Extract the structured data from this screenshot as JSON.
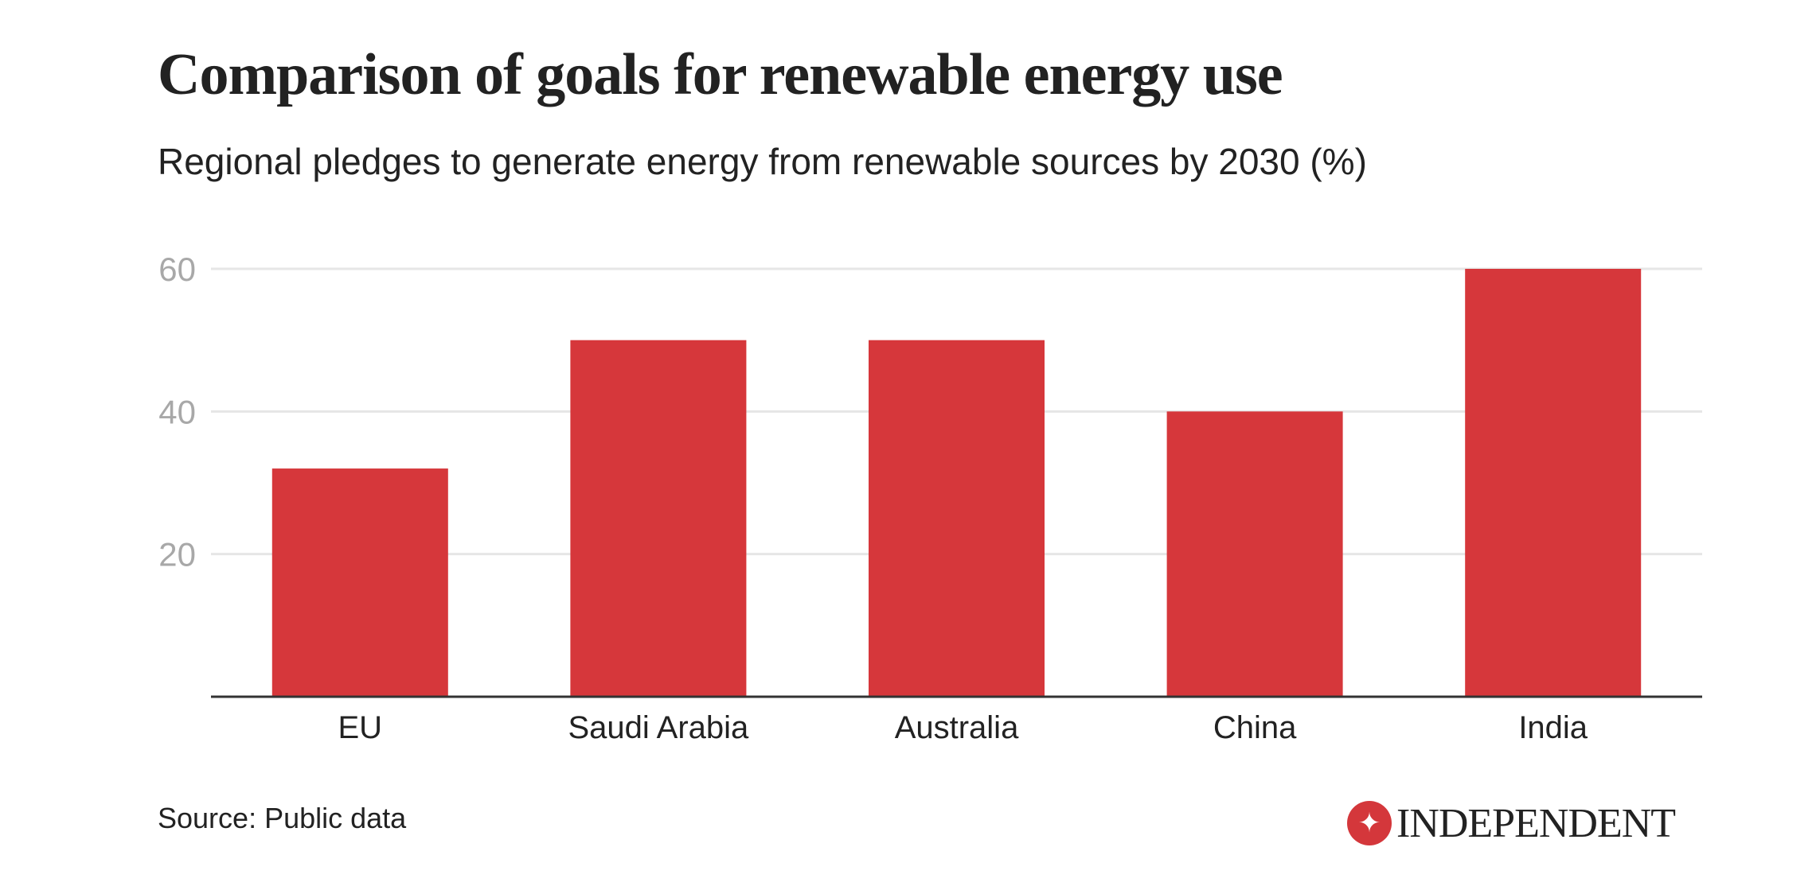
{
  "header": {
    "title": "Comparison of goals for renewable energy use",
    "subtitle": "Regional pledges to generate energy from renewable sources by 2030 (%)"
  },
  "footer": {
    "source": "Source: Public data",
    "logo_text": "INDEPENDENT",
    "logo_icon": "eagle-icon"
  },
  "colors": {
    "bar": "#d6373b",
    "grid": "#e6e6e6",
    "axis": "#333333",
    "ytick": "#a8a8a8",
    "text": "#222222"
  },
  "chart_data": {
    "type": "bar",
    "title": "Comparison of goals for renewable energy use",
    "subtitle": "Regional pledges to generate energy from renewable sources by 2030 (%)",
    "categories": [
      "EU",
      "Saudi Arabia",
      "Australia",
      "China",
      "India"
    ],
    "values": [
      32,
      50,
      50,
      40,
      60
    ],
    "xlabel": "",
    "ylabel": "",
    "ylim": [
      0,
      60
    ],
    "yticks": [
      20,
      40,
      60
    ],
    "ytick_labels": [
      "20",
      "40",
      "60"
    ],
    "grid": true,
    "legend": "none",
    "source": "Source: Public data"
  }
}
